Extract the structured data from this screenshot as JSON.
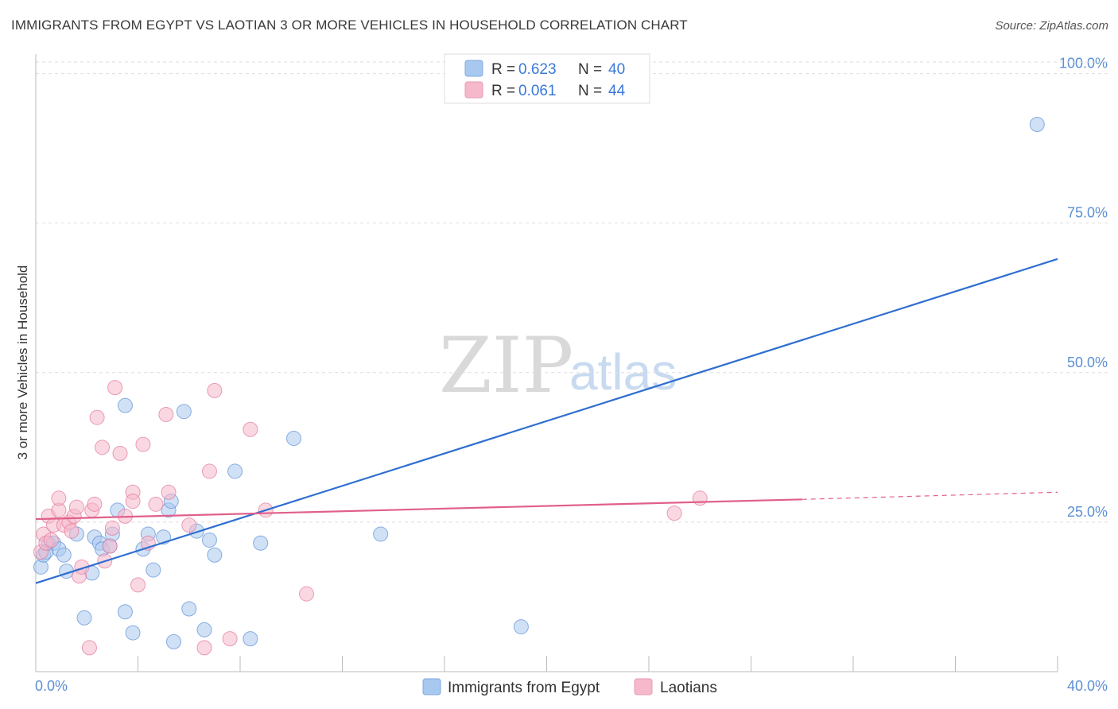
{
  "header": {
    "title": "IMMIGRANTS FROM EGYPT VS LAOTIAN 3 OR MORE VEHICLES IN HOUSEHOLD CORRELATION CHART",
    "source": "Source: ZipAtlas.com"
  },
  "legend": {
    "rows": [
      {
        "r_label": "R =",
        "r_value": "0.623",
        "n_label": "N =",
        "n_value": "40",
        "color": "#a9c8ef"
      },
      {
        "r_label": "R =",
        "r_value": "0.061",
        "n_label": "N =",
        "n_value": "44",
        "color": "#f6b8cb"
      }
    ]
  },
  "watermark": {
    "zip": "ZIP",
    "atlas": "atlas"
  },
  "bottom_legend": {
    "items": [
      {
        "label": "Immigrants from Egypt",
        "color": "#a9c8ef"
      },
      {
        "label": "Laotians",
        "color": "#f6b8cb"
      }
    ]
  },
  "chart_data": {
    "type": "scatter",
    "title": "IMMIGRANTS FROM EGYPT VS LAOTIAN 3 OR MORE VEHICLES IN HOUSEHOLD CORRELATION CHART",
    "xlabel": "",
    "ylabel": "3 or more Vehicles in Household",
    "xlim": [
      0,
      40
    ],
    "ylim": [
      0,
      103
    ],
    "x_tick_labels": [
      "0.0%",
      "40.0%"
    ],
    "y_ticks": [
      25,
      50,
      75,
      100
    ],
    "y_tick_labels": [
      "25.0%",
      "50.0%",
      "75.0%",
      "100.0%"
    ],
    "grid": true,
    "legend_position": "top-center",
    "series": [
      {
        "name": "Immigrants from Egypt",
        "color": "#5b8ed6",
        "fill": "#a9c8ef",
        "points": [
          [
            0.2,
            17.5
          ],
          [
            0.3,
            19.5
          ],
          [
            0.5,
            21.5
          ],
          [
            0.7,
            21.5
          ],
          [
            0.9,
            20.5
          ],
          [
            1.1,
            19.5
          ],
          [
            1.2,
            16.8
          ],
          [
            1.6,
            23.0
          ],
          [
            1.9,
            9.0
          ],
          [
            2.2,
            16.5
          ],
          [
            2.3,
            22.5
          ],
          [
            2.5,
            21.5
          ],
          [
            2.6,
            20.5
          ],
          [
            2.9,
            21.0
          ],
          [
            3.0,
            23.0
          ],
          [
            3.2,
            27.0
          ],
          [
            3.5,
            10.0
          ],
          [
            3.5,
            44.5
          ],
          [
            3.8,
            6.5
          ],
          [
            4.2,
            20.5
          ],
          [
            4.4,
            23.0
          ],
          [
            4.6,
            17.0
          ],
          [
            5.0,
            22.5
          ],
          [
            5.2,
            27.0
          ],
          [
            5.3,
            28.5
          ],
          [
            5.4,
            5.0
          ],
          [
            5.8,
            43.5
          ],
          [
            6.0,
            10.5
          ],
          [
            6.3,
            23.5
          ],
          [
            6.6,
            7.0
          ],
          [
            6.8,
            22.0
          ],
          [
            7.0,
            19.5
          ],
          [
            7.8,
            33.5
          ],
          [
            8.4,
            5.5
          ],
          [
            8.8,
            21.5
          ],
          [
            10.1,
            39.0
          ],
          [
            13.5,
            23.0
          ],
          [
            19.0,
            7.5
          ],
          [
            39.2,
            91.5
          ],
          [
            0.4,
            20.0
          ]
        ],
        "trend": {
          "x": [
            0,
            40
          ],
          "y": [
            14.8,
            69.0
          ],
          "style": "solid"
        }
      },
      {
        "name": "Laotians",
        "color": "#e3769b",
        "fill": "#f6b8cb",
        "points": [
          [
            0.2,
            20.0
          ],
          [
            0.3,
            23.0
          ],
          [
            0.4,
            21.5
          ],
          [
            0.5,
            26.0
          ],
          [
            0.7,
            24.5
          ],
          [
            0.9,
            27.0
          ],
          [
            0.9,
            29.0
          ],
          [
            1.1,
            24.5
          ],
          [
            1.3,
            25.0
          ],
          [
            1.4,
            23.5
          ],
          [
            1.5,
            26.0
          ],
          [
            1.6,
            27.5
          ],
          [
            1.7,
            16.0
          ],
          [
            1.8,
            17.5
          ],
          [
            2.1,
            4.0
          ],
          [
            2.2,
            27.0
          ],
          [
            2.3,
            28.0
          ],
          [
            2.4,
            42.5
          ],
          [
            2.6,
            37.5
          ],
          [
            2.7,
            18.5
          ],
          [
            2.9,
            21.0
          ],
          [
            3.0,
            24.0
          ],
          [
            3.1,
            47.5
          ],
          [
            3.3,
            36.5
          ],
          [
            3.5,
            26.0
          ],
          [
            3.8,
            30.0
          ],
          [
            3.8,
            28.5
          ],
          [
            4.0,
            14.5
          ],
          [
            4.2,
            38.0
          ],
          [
            4.4,
            21.5
          ],
          [
            4.7,
            28.0
          ],
          [
            5.1,
            43.0
          ],
          [
            5.2,
            30.0
          ],
          [
            6.0,
            24.5
          ],
          [
            6.6,
            4.0
          ],
          [
            6.8,
            33.5
          ],
          [
            7.0,
            47.0
          ],
          [
            7.6,
            5.5
          ],
          [
            8.4,
            40.5
          ],
          [
            9.0,
            27.0
          ],
          [
            10.6,
            13.0
          ],
          [
            25.0,
            26.5
          ],
          [
            26.0,
            29.0
          ],
          [
            0.6,
            22.0
          ]
        ],
        "trend": {
          "x": [
            0,
            30,
            40
          ],
          "y": [
            25.5,
            28.8,
            30.0
          ],
          "style": "solid-then-dashed"
        }
      }
    ]
  }
}
